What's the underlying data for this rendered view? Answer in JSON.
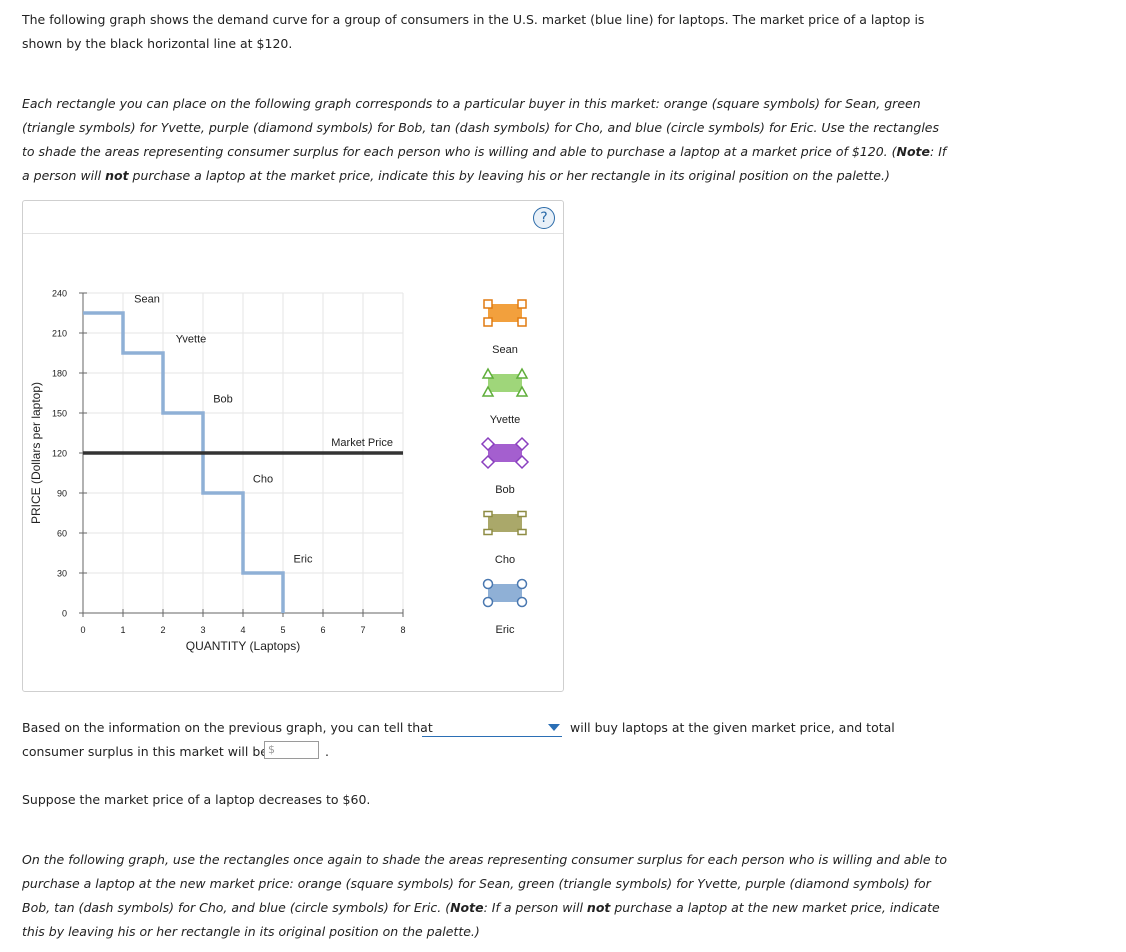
{
  "intro": {
    "p1": "The following graph shows the demand curve for a group of consumers in the U.S. market (blue line) for laptops. The market price of a laptop is shown by the black horizontal line at $120.",
    "p2_a": "Each rectangle you can place on the following graph corresponds to a particular buyer in this market: orange (square symbols) for Sean, green (triangle symbols) for Yvette, purple (diamond symbols) for Bob, tan (dash symbols) for Cho, and blue (circle symbols) for Eric. Use the rectangles to shade the areas representing consumer surplus for each person who is willing and able to purchase a laptop at a market price of $120. (",
    "p2_note": "Note",
    "p2_b": ": If a person will ",
    "p2_not": "not",
    "p2_c": " purchase a laptop at the market price, indicate this by leaving his or her rectangle in its original position on the palette.)"
  },
  "help_icon": "?",
  "chart_data": {
    "type": "line",
    "title": "",
    "xlabel": "QUANTITY (Laptops)",
    "ylabel": "PRICE (Dollars per laptop)",
    "xlim": [
      0,
      8
    ],
    "ylim": [
      0,
      240
    ],
    "x_ticks": [
      0,
      1,
      2,
      3,
      4,
      5,
      6,
      7,
      8
    ],
    "y_ticks": [
      0,
      30,
      60,
      90,
      120,
      150,
      180,
      210,
      240
    ],
    "grid": true,
    "series": [
      {
        "name": "Demand",
        "color": "#8fb0d6",
        "points": [
          [
            0,
            225
          ],
          [
            1,
            225
          ],
          [
            1,
            195
          ],
          [
            2,
            195
          ],
          [
            2,
            150
          ],
          [
            3,
            150
          ],
          [
            3,
            90
          ],
          [
            4,
            90
          ],
          [
            4,
            30
          ],
          [
            5,
            30
          ],
          [
            5,
            0
          ]
        ]
      }
    ],
    "market_price": {
      "label": "Market Price",
      "value": 120,
      "color": "#333333"
    },
    "step_labels": [
      {
        "text": "Sean",
        "x": 1.6,
        "y": 233
      },
      {
        "text": "Yvette",
        "x": 2.7,
        "y": 203
      },
      {
        "text": "Bob",
        "x": 3.5,
        "y": 158
      },
      {
        "text": "Cho",
        "x": 4.5,
        "y": 98
      },
      {
        "text": "Eric",
        "x": 5.5,
        "y": 38
      }
    ]
  },
  "palette": [
    {
      "name": "Sean",
      "color": "#f2a03d",
      "symbol": "square",
      "stroke": "#e07a10"
    },
    {
      "name": "Yvette",
      "color": "#9fd67a",
      "symbol": "triangle",
      "stroke": "#5fae3a"
    },
    {
      "name": "Bob",
      "color": "#a45fcf",
      "symbol": "diamond",
      "stroke": "#8a3fbf"
    },
    {
      "name": "Cho",
      "color": "#aaa86a",
      "symbol": "dash",
      "stroke": "#8e8c44"
    },
    {
      "name": "Eric",
      "color": "#8fb0d6",
      "symbol": "circle",
      "stroke": "#4a78b0"
    }
  ],
  "question": {
    "line1_a": "Based on the information on the previous graph, you can tell that",
    "line1_b": "will buy laptops at the given market price, and total",
    "line2": "consumer surplus in this market will be",
    "currency": "$",
    "period": "."
  },
  "p5": "Suppose the market price of a laptop decreases to $60.",
  "p6": {
    "a": "On the following graph, use the rectangles once again to shade the areas representing consumer surplus for each person who is willing and able to purchase a laptop at the new market price: orange (square symbols) for Sean, green (triangle symbols) for Yvette, purple (diamond symbols) for Bob, tan (dash symbols) for Cho, and blue (circle symbols) for Eric. (",
    "note": "Note",
    "b": ": If a person will ",
    "not": "not",
    "c": " purchase a laptop at the new market price, indicate this by leaving his or her rectangle in its original position on the palette.)"
  }
}
